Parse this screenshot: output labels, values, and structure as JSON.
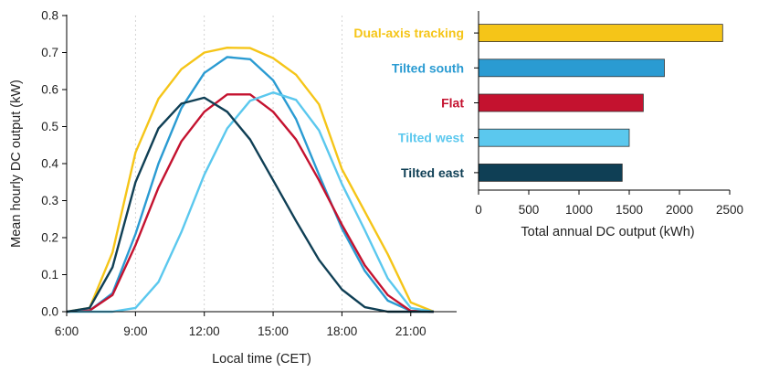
{
  "chart_data": [
    {
      "type": "line",
      "xlabel": "Local time (CET)",
      "ylabel": "Mean hourly DC output (kW)",
      "xlim": [
        6,
        23
      ],
      "ylim": [
        0,
        0.8
      ],
      "x_ticks": [
        6,
        9,
        12,
        15,
        18,
        21
      ],
      "x_tick_labels": [
        "6:00",
        "9:00",
        "12:00",
        "15:00",
        "18:00",
        "21:00"
      ],
      "y_ticks": [
        0.0,
        0.1,
        0.2,
        0.3,
        0.4,
        0.5,
        0.6,
        0.7,
        0.8
      ],
      "y_tick_labels": [
        "0.0",
        "0.1",
        "0.2",
        "0.3",
        "0.4",
        "0.5",
        "0.6",
        "0.7",
        "0.8"
      ],
      "vertical_gridlines_at": [
        9,
        12,
        15,
        18
      ],
      "series": [
        {
          "name": "Dual-axis tracking",
          "color": "#F5C518",
          "x": [
            6,
            7,
            8,
            9,
            10,
            11,
            12,
            13,
            14,
            15,
            16,
            17,
            18,
            19,
            20,
            21,
            22
          ],
          "values": [
            0.0,
            0.01,
            0.16,
            0.43,
            0.575,
            0.655,
            0.7,
            0.713,
            0.712,
            0.685,
            0.64,
            0.56,
            0.385,
            0.27,
            0.155,
            0.025,
            0.0
          ]
        },
        {
          "name": "Tilted south",
          "color": "#2A9BD2",
          "x": [
            6,
            7,
            8,
            9,
            10,
            11,
            12,
            13,
            14,
            15,
            16,
            17,
            18,
            19,
            20,
            21,
            22
          ],
          "values": [
            0.0,
            0.003,
            0.05,
            0.21,
            0.4,
            0.55,
            0.645,
            0.688,
            0.682,
            0.625,
            0.52,
            0.37,
            0.225,
            0.11,
            0.03,
            0.002,
            0.0
          ]
        },
        {
          "name": "Flat",
          "color": "#C4122F",
          "x": [
            6,
            7,
            8,
            9,
            10,
            11,
            12,
            13,
            14,
            15,
            16,
            17,
            18,
            19,
            20,
            21,
            22
          ],
          "values": [
            0.0,
            0.003,
            0.045,
            0.18,
            0.335,
            0.46,
            0.54,
            0.587,
            0.587,
            0.54,
            0.465,
            0.355,
            0.235,
            0.125,
            0.045,
            0.002,
            0.0
          ]
        },
        {
          "name": "Tilted west",
          "color": "#5BC8EE",
          "x": [
            6,
            7,
            8,
            9,
            10,
            11,
            12,
            13,
            14,
            15,
            16,
            17,
            18,
            19,
            20,
            21,
            22
          ],
          "values": [
            0.0,
            0.0,
            0.0,
            0.01,
            0.08,
            0.215,
            0.37,
            0.495,
            0.57,
            0.592,
            0.572,
            0.49,
            0.345,
            0.22,
            0.09,
            0.01,
            0.0
          ]
        },
        {
          "name": "Tilted east",
          "color": "#0F3F55",
          "x": [
            6,
            7,
            8,
            9,
            10,
            11,
            12,
            13,
            14,
            15,
            16,
            17,
            18,
            19,
            20,
            21,
            22
          ],
          "values": [
            0.0,
            0.01,
            0.12,
            0.35,
            0.495,
            0.562,
            0.578,
            0.54,
            0.465,
            0.355,
            0.245,
            0.14,
            0.06,
            0.012,
            0.0,
            0.0,
            0.0
          ]
        }
      ]
    },
    {
      "type": "bar",
      "orientation": "horizontal",
      "xlabel": "Total annual DC output (kWh)",
      "xlim": [
        0,
        2500
      ],
      "x_ticks": [
        0,
        500,
        1000,
        1500,
        2000,
        2500
      ],
      "x_tick_labels": [
        "0",
        "500",
        "1000",
        "1500",
        "2000",
        "2500"
      ],
      "categories": [
        "Dual-axis tracking",
        "Tilted south",
        "Flat",
        "Tilted west",
        "Tilted east"
      ],
      "values": [
        2430,
        1850,
        1640,
        1500,
        1430
      ],
      "colors": [
        "#F5C518",
        "#2A9BD2",
        "#C4122F",
        "#5BC8EE",
        "#0F3F55"
      ]
    }
  ]
}
